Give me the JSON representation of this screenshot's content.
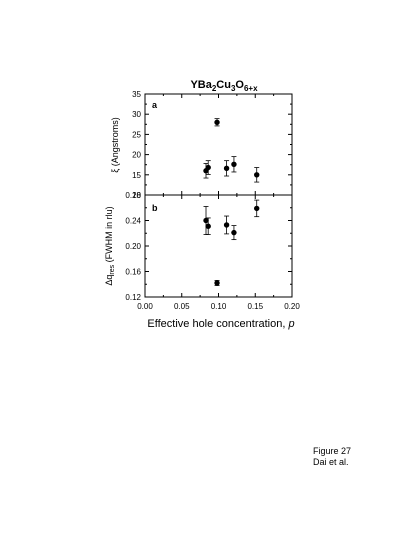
{
  "caption": {
    "line1": "Figure 27",
    "line2": "Dai et al."
  },
  "chart_data": [
    {
      "type": "scatter",
      "panel_label": "a",
      "title": {
        "base": "YBa",
        "sub1": "2",
        "mid": "Cu",
        "sub2": "3",
        "mid2": "O",
        "sub3": "6+x"
      },
      "ylabel": "ξ (Angstroms)",
      "xlim": [
        0.0,
        0.2
      ],
      "ylim": [
        10,
        35
      ],
      "yticks": [
        "10",
        "15",
        "20",
        "25",
        "30",
        "35"
      ],
      "ytick_values": [
        10,
        15,
        20,
        25,
        30,
        35
      ],
      "points": [
        {
          "x": 0.083,
          "y": 16.0,
          "err": 1.8
        },
        {
          "x": 0.086,
          "y": 16.8,
          "err": 1.7
        },
        {
          "x": 0.098,
          "y": 28.0,
          "err": 0.9
        },
        {
          "x": 0.111,
          "y": 16.6,
          "err": 1.9
        },
        {
          "x": 0.121,
          "y": 17.6,
          "err": 1.9
        },
        {
          "x": 0.152,
          "y": 15.0,
          "err": 1.8
        }
      ]
    },
    {
      "type": "scatter",
      "panel_label": "b",
      "ylabel": {
        "base": "Δq",
        "sub": "res",
        "rest": " (FWHM in rlu)"
      },
      "xlabel": {
        "text": "Effective hole concentration, ",
        "var": "p"
      },
      "xlim": [
        0.0,
        0.2
      ],
      "ylim": [
        0.12,
        0.28
      ],
      "xticks": [
        "0.00",
        "0.05",
        "0.10",
        "0.15",
        "0.20"
      ],
      "xtick_values": [
        0.0,
        0.05,
        0.1,
        0.15,
        0.2
      ],
      "yticks": [
        "0.12",
        "0.16",
        "0.20",
        "0.24",
        "0.28"
      ],
      "ytick_values": [
        0.12,
        0.16,
        0.2,
        0.24,
        0.28
      ],
      "points": [
        {
          "x": 0.083,
          "y": 0.24,
          "err": 0.022
        },
        {
          "x": 0.086,
          "y": 0.231,
          "err": 0.013
        },
        {
          "x": 0.098,
          "y": 0.142,
          "err": 0.004
        },
        {
          "x": 0.111,
          "y": 0.233,
          "err": 0.014
        },
        {
          "x": 0.121,
          "y": 0.221,
          "err": 0.011
        },
        {
          "x": 0.152,
          "y": 0.259,
          "err": 0.013
        }
      ]
    }
  ]
}
